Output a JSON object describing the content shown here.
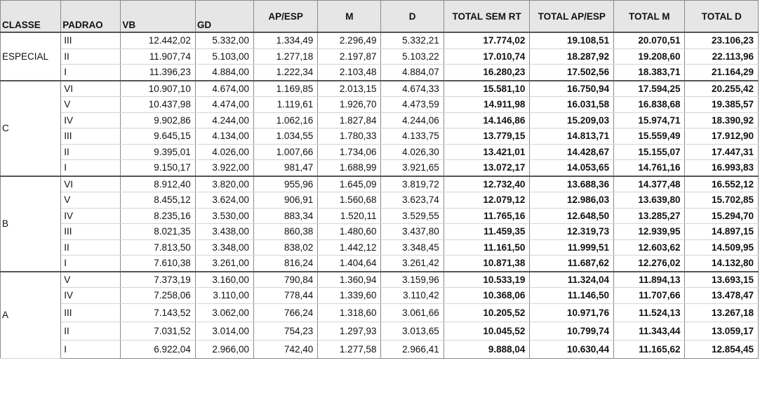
{
  "headers": [
    "CLASSE",
    "PADRAO",
    "VB",
    "GD",
    "AP/ESP",
    "M",
    "D",
    "TOTAL SEM RT",
    "TOTAL AP/ESP",
    "TOTAL M",
    "TOTAL D"
  ],
  "groups": [
    {
      "classe": "ESPECIAL",
      "rows": [
        [
          "III",
          "12.442,02",
          "5.332,00",
          "1.334,49",
          "2.296,49",
          "5.332,21",
          "17.774,02",
          "19.108,51",
          "20.070,51",
          "23.106,23"
        ],
        [
          "II",
          "11.907,74",
          "5.103,00",
          "1.277,18",
          "2.197,87",
          "5.103,22",
          "17.010,74",
          "18.287,92",
          "19.208,60",
          "22.113,96"
        ],
        [
          "I",
          "11.396,23",
          "4.884,00",
          "1.222,34",
          "2.103,48",
          "4.884,07",
          "16.280,23",
          "17.502,56",
          "18.383,71",
          "21.164,29"
        ]
      ]
    },
    {
      "classe": "C",
      "rows": [
        [
          "VI",
          "10.907,10",
          "4.674,00",
          "1.169,85",
          "2.013,15",
          "4.674,33",
          "15.581,10",
          "16.750,94",
          "17.594,25",
          "20.255,42"
        ],
        [
          "V",
          "10.437,98",
          "4.474,00",
          "1.119,61",
          "1.926,70",
          "4.473,59",
          "14.911,98",
          "16.031,58",
          "16.838,68",
          "19.385,57"
        ],
        [
          "IV",
          "9.902,86",
          "4.244,00",
          "1.062,16",
          "1.827,84",
          "4.244,06",
          "14.146,86",
          "15.209,03",
          "15.974,71",
          "18.390,92"
        ],
        [
          "III",
          "9.645,15",
          "4.134,00",
          "1.034,55",
          "1.780,33",
          "4.133,75",
          "13.779,15",
          "14.813,71",
          "15.559,49",
          "17.912,90"
        ],
        [
          "II",
          "9.395,01",
          "4.026,00",
          "1.007,66",
          "1.734,06",
          "4.026,30",
          "13.421,01",
          "14.428,67",
          "15.155,07",
          "17.447,31"
        ],
        [
          "I",
          "9.150,17",
          "3.922,00",
          "981,47",
          "1.688,99",
          "3.921,65",
          "13.072,17",
          "14.053,65",
          "14.761,16",
          "16.993,83"
        ]
      ]
    },
    {
      "classe": "B",
      "rows": [
        [
          "VI",
          "8.912,40",
          "3.820,00",
          "955,96",
          "1.645,09",
          "3.819,72",
          "12.732,40",
          "13.688,36",
          "14.377,48",
          "16.552,12"
        ],
        [
          "V",
          "8.455,12",
          "3.624,00",
          "906,91",
          "1.560,68",
          "3.623,74",
          "12.079,12",
          "12.986,03",
          "13.639,80",
          "15.702,85"
        ],
        [
          "IV",
          "8.235,16",
          "3.530,00",
          "883,34",
          "1.520,11",
          "3.529,55",
          "11.765,16",
          "12.648,50",
          "13.285,27",
          "15.294,70"
        ],
        [
          "III",
          "8.021,35",
          "3.438,00",
          "860,38",
          "1.480,60",
          "3.437,80",
          "11.459,35",
          "12.319,73",
          "12.939,95",
          "14.897,15"
        ],
        [
          "II",
          "7.813,50",
          "3.348,00",
          "838,02",
          "1.442,12",
          "3.348,45",
          "11.161,50",
          "11.999,51",
          "12.603,62",
          "14.509,95"
        ],
        [
          "I",
          "7.610,38",
          "3.261,00",
          "816,24",
          "1.404,64",
          "3.261,42",
          "10.871,38",
          "11.687,62",
          "12.276,02",
          "14.132,80"
        ]
      ]
    },
    {
      "classe": "A",
      "rows": [
        [
          "V",
          "7.373,19",
          "3.160,00",
          "790,84",
          "1.360,94",
          "3.159,96",
          "10.533,19",
          "11.324,04",
          "11.894,13",
          "13.693,15"
        ],
        [
          "IV",
          "7.258,06",
          "3.110,00",
          "778,44",
          "1.339,60",
          "3.110,42",
          "10.368,06",
          "11.146,50",
          "11.707,66",
          "13.478,47"
        ],
        [
          "III",
          "7.143,52",
          "3.062,00",
          "766,24",
          "1.318,60",
          "3.061,66",
          "10.205,52",
          "10.971,76",
          "11.524,13",
          "13.267,18"
        ],
        [
          "II",
          "7.031,52",
          "3.014,00",
          "754,23",
          "1.297,93",
          "3.013,65",
          "10.045,52",
          "10.799,74",
          "11.343,44",
          "13.059,17"
        ],
        [
          "I",
          "6.922,04",
          "2.966,00",
          "742,40",
          "1.277,58",
          "2.966,41",
          "9.888,04",
          "10.630,44",
          "11.165,62",
          "12.854,45"
        ]
      ]
    }
  ]
}
